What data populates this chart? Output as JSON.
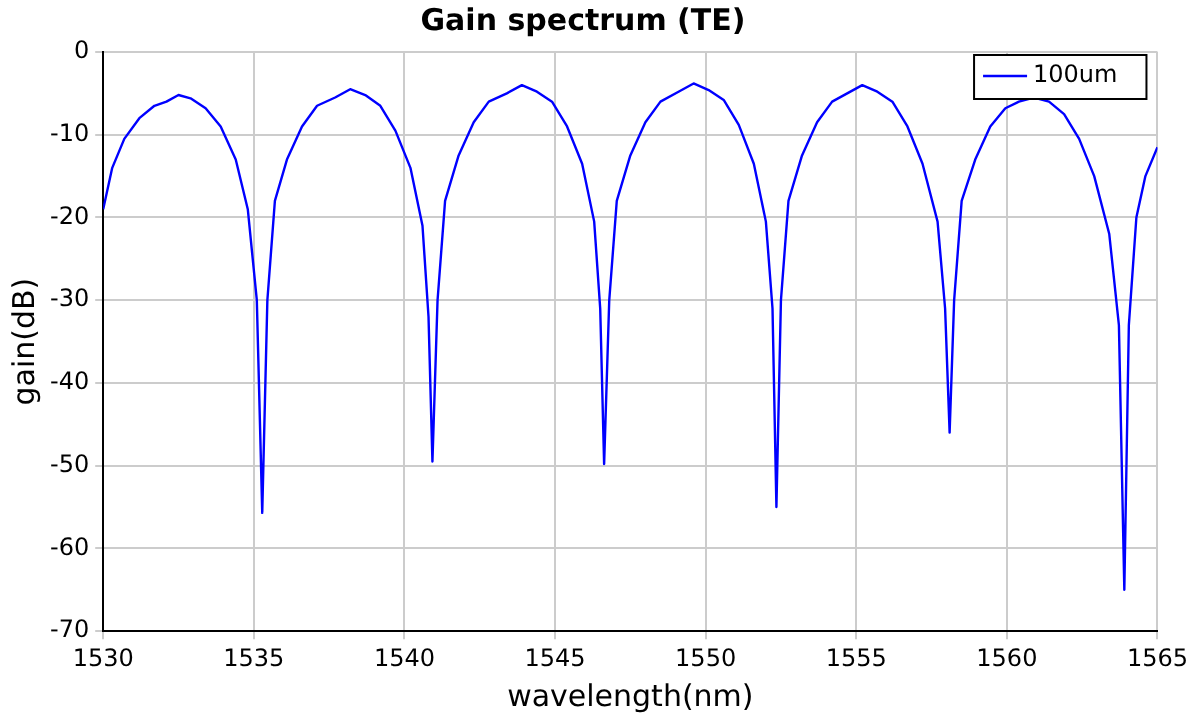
{
  "chart_data": {
    "type": "line",
    "title": "Gain spectrum (TE)",
    "xlabel": "wavelength(nm)",
    "ylabel": "gain(dB)",
    "xlim": [
      1530,
      1565
    ],
    "xticks": [
      1530,
      1535,
      1540,
      1545,
      1550,
      1555,
      1560,
      1565
    ],
    "ylim": [
      -70,
      0
    ],
    "yticks": [
      -70,
      -60,
      -50,
      -40,
      -30,
      -20,
      -10,
      0
    ],
    "grid": true,
    "legend": "top right",
    "marker": "none",
    "line_style": "solid",
    "series": [
      {
        "name": "100um",
        "color": "#0000ff",
        "x": [
          1530,
          1530.3,
          1530.7,
          1531.2,
          1531.7,
          1532.1,
          1532.5,
          1532.9,
          1533.4,
          1533.9,
          1534.4,
          1534.8,
          1535.1,
          1535.28,
          1535.45,
          1535.7,
          1536.1,
          1536.6,
          1537.1,
          1537.7,
          1538.2,
          1538.7,
          1539.2,
          1539.7,
          1540.2,
          1540.6,
          1540.8,
          1540.93,
          1541.1,
          1541.35,
          1541.8,
          1542.3,
          1542.8,
          1543.4,
          1543.9,
          1544.4,
          1544.9,
          1545.4,
          1545.9,
          1546.3,
          1546.5,
          1546.63,
          1546.8,
          1547.05,
          1547.5,
          1548,
          1548.5,
          1549.1,
          1549.6,
          1550.1,
          1550.6,
          1551.1,
          1551.6,
          1552,
          1552.22,
          1552.35,
          1552.5,
          1552.75,
          1553.2,
          1553.7,
          1554.2,
          1554.7,
          1555.2,
          1555.7,
          1556.2,
          1556.7,
          1557.2,
          1557.7,
          1557.95,
          1558.1,
          1558.25,
          1558.5,
          1558.95,
          1559.45,
          1559.95,
          1560.4,
          1560.9,
          1561.4,
          1561.9,
          1562.4,
          1562.9,
          1563.4,
          1563.72,
          1563.9,
          1564.05,
          1564.3,
          1564.6,
          1565
        ],
        "values": [
          -19,
          -14,
          -10.5,
          -8,
          -6.5,
          -6,
          -5.2,
          -5.6,
          -6.8,
          -9,
          -13,
          -19,
          -30,
          -55.7,
          -30,
          -18,
          -13,
          -9,
          -6.5,
          -5.5,
          -4.5,
          -5.2,
          -6.5,
          -9.5,
          -14,
          -21,
          -32,
          -49.5,
          -30,
          -18,
          -12.5,
          -8.5,
          -6,
          -5,
          -4,
          -4.8,
          -6,
          -9,
          -13.5,
          -20.5,
          -31,
          -49.8,
          -30,
          -18,
          -12.5,
          -8.5,
          -6,
          -4.8,
          -3.8,
          -4.6,
          -5.8,
          -8.8,
          -13.5,
          -20.5,
          -31,
          -55,
          -30,
          -18,
          -12.5,
          -8.5,
          -6,
          -5,
          -4,
          -4.8,
          -6,
          -9,
          -13.5,
          -20.5,
          -31,
          -46,
          -30,
          -18,
          -13,
          -9,
          -6.8,
          -6,
          -5.5,
          -6,
          -7.5,
          -10.5,
          -15,
          -22,
          -33,
          -65,
          -33,
          -20,
          -15,
          -11.5
        ]
      }
    ]
  }
}
